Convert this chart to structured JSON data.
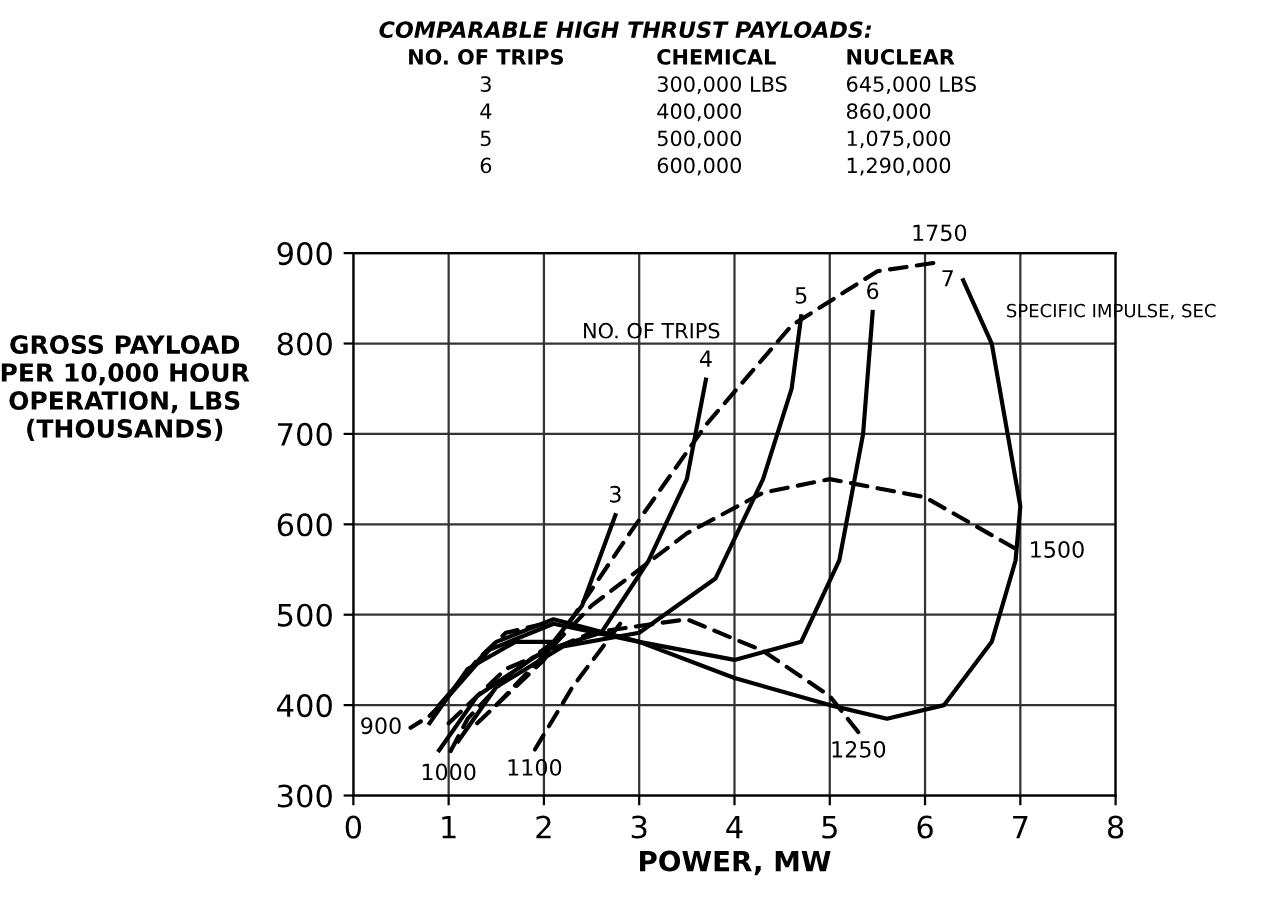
{
  "chart_data": {
    "type": "line",
    "title": "COMPARABLE HIGH THRUST PAYLOADS:",
    "xlabel": "POWER, MW",
    "ylabel": "GROSS PAYLOAD\nPER 10,000 HOUR\nOPERATION, LBS\n(THOUSANDS)",
    "xlim": [
      0,
      8
    ],
    "ylim": [
      300,
      900
    ],
    "xticks": [
      0,
      1,
      2,
      3,
      4,
      5,
      6,
      7,
      8
    ],
    "yticks": [
      300,
      400,
      500,
      600,
      700,
      800,
      900
    ],
    "grid": true,
    "marker": "none",
    "annotations": [
      "NO. OF TRIPS",
      "CHEMICAL",
      "NUCLEAR",
      "3",
      "300,000 LBS",
      "645,000 LBS",
      "4",
      "400,000",
      "860,000",
      "5",
      "500,000",
      "1,075,000",
      "6",
      "600,000",
      "1,290,000",
      "NO. OF TRIPS",
      "SPECIFIC IMPULSE, SEC"
    ],
    "series": [
      {
        "name": "3",
        "color": "#000000",
        "line_style": "solid",
        "x": [
          0.8,
          1.2,
          1.7,
          2.1,
          2.4,
          2.75
        ],
        "values": [
          380,
          440,
          470,
          470,
          510,
          610
        ]
      },
      {
        "name": "4",
        "color": "#000000",
        "line_style": "solid",
        "x": [
          0.9,
          1.3,
          2.0,
          2.6,
          3.1,
          3.5,
          3.7
        ],
        "values": [
          350,
          410,
          460,
          480,
          560,
          650,
          760
        ]
      },
      {
        "name": "5",
        "color": "#000000",
        "line_style": "solid",
        "x": [
          1.1,
          1.5,
          2.2,
          3.0,
          3.8,
          4.3,
          4.6,
          4.7
        ],
        "values": [
          360,
          420,
          465,
          480,
          540,
          650,
          750,
          830
        ]
      },
      {
        "name": "6",
        "color": "#000000",
        "line_style": "solid",
        "x": [
          0.9,
          1.4,
          2.1,
          3.0,
          4.0,
          4.7,
          5.1,
          5.35,
          5.45
        ],
        "values": [
          400,
          460,
          490,
          470,
          450,
          470,
          560,
          700,
          835
        ]
      },
      {
        "name": "7",
        "color": "#000000",
        "line_style": "solid",
        "x": [
          1.0,
          1.5,
          2.1,
          3.0,
          4.0,
          5.0,
          5.6,
          6.2,
          6.7,
          6.95,
          7.0,
          6.7,
          6.4
        ],
        "values": [
          410,
          470,
          495,
          470,
          430,
          400,
          385,
          400,
          470,
          560,
          620,
          800,
          870
        ]
      },
      {
        "name": "900",
        "color": "#000000",
        "line_style": "dashed",
        "x": [
          2.0,
          1.6,
          1.3,
          1.0,
          0.8,
          0.6
        ],
        "values": [
          490,
          480,
          450,
          410,
          388,
          375
        ]
      },
      {
        "name": "1000",
        "color": "#000000",
        "line_style": "dashed",
        "x": [
          2.1,
          1.6,
          1.2,
          1.0
        ],
        "values": [
          470,
          430,
          385,
          345
        ]
      },
      {
        "name": "1100",
        "color": "#000000",
        "line_style": "dashed",
        "x": [
          2.8,
          2.3,
          1.9
        ],
        "values": [
          490,
          420,
          350
        ]
      },
      {
        "name": "1250",
        "color": "#000000",
        "line_style": "dashed",
        "x": [
          1.0,
          1.6,
          2.5,
          3.5,
          4.3,
          5.0,
          5.3
        ],
        "values": [
          380,
          440,
          480,
          495,
          460,
          410,
          370
        ]
      },
      {
        "name": "1500",
        "color": "#000000",
        "line_style": "dashed",
        "x": [
          1.5,
          2.5,
          3.5,
          4.3,
          5.0,
          6.0,
          7.0
        ],
        "values": [
          400,
          510,
          590,
          635,
          650,
          630,
          570
        ]
      },
      {
        "name": "1750",
        "color": "#000000",
        "line_style": "dashed",
        "x": [
          1.3,
          2.0,
          2.9,
          3.7,
          4.6,
          5.5,
          6.15
        ],
        "values": [
          380,
          450,
          590,
          710,
          820,
          880,
          890
        ]
      }
    ]
  }
}
